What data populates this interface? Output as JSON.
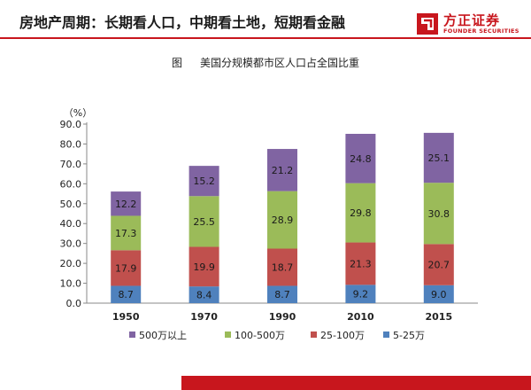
{
  "header": {
    "title": "房地产周期：长期看人口，中期看土地，短期看金融",
    "logo_cn": "方正证券",
    "logo_en": "FOUNDER SECURITIES"
  },
  "caption": {
    "prefix": "图",
    "text": "美国分规模都市区人口占全国比重"
  },
  "colors": {
    "accent": "#c8161d",
    "s5_25": "#4f81bd",
    "s25_100": "#c0504d",
    "s100_500": "#9bbb59",
    "s500": "#8064a2"
  },
  "chart_data": {
    "type": "bar",
    "stacked": true,
    "ylabel": "（%）",
    "ylim": [
      0,
      90
    ],
    "yticks": [
      "0.0",
      "10.0",
      "20.0",
      "30.0",
      "40.0",
      "50.0",
      "60.0",
      "70.0",
      "80.0",
      "90.0"
    ],
    "categories": [
      "1950",
      "1970",
      "1990",
      "2010",
      "2015"
    ],
    "series": [
      {
        "name": "5-25万",
        "values": [
          8.7,
          8.4,
          8.7,
          9.2,
          9.0
        ],
        "labels": [
          "8.7",
          "8.4",
          "8.7",
          "9.2",
          "9.0"
        ]
      },
      {
        "name": "25-100万",
        "values": [
          17.9,
          19.9,
          18.7,
          21.3,
          20.7
        ],
        "labels": [
          "17.9",
          "19.9",
          "18.7",
          "21.3",
          "20.7"
        ]
      },
      {
        "name": "100-500万",
        "values": [
          17.3,
          25.5,
          28.9,
          29.8,
          30.8
        ],
        "labels": [
          "17.3",
          "25.5",
          "28.9",
          "29.8",
          "30.8"
        ]
      },
      {
        "name": "500万以上",
        "values": [
          12.2,
          15.2,
          21.2,
          24.8,
          25.1
        ],
        "labels": [
          "12.2",
          "15.2",
          "21.2",
          "24.8",
          "25.1"
        ]
      }
    ],
    "legend_order": [
      "500万以上",
      "100-500万",
      "25-100万",
      "5-25万"
    ],
    "legend_position": "bottom",
    "grid": false
  }
}
